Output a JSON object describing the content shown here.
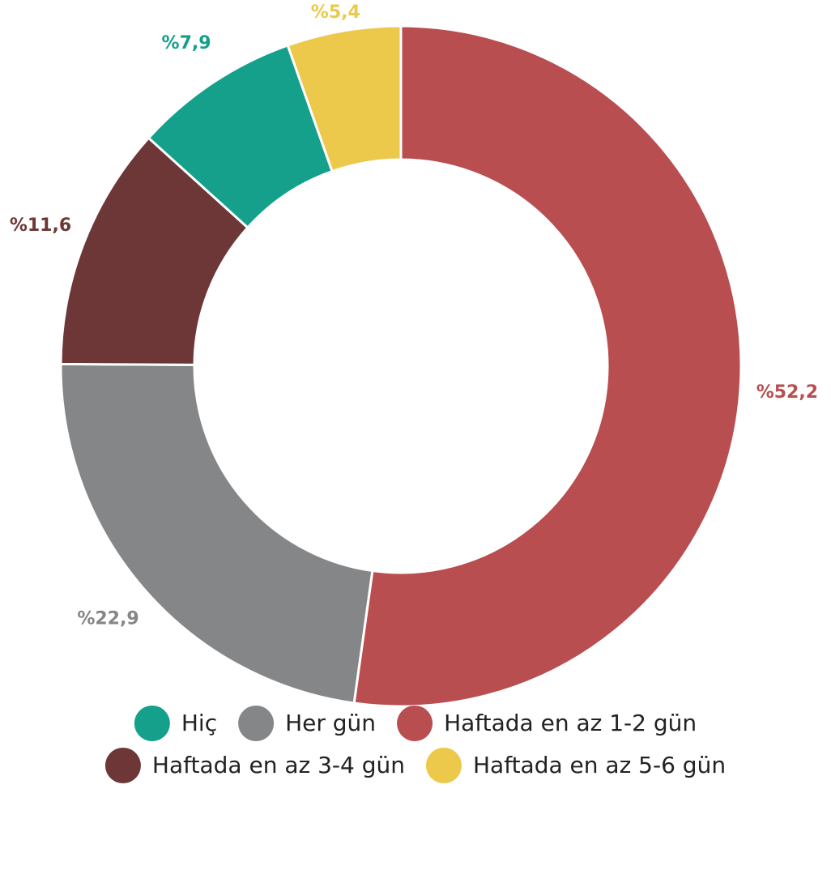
{
  "chart_data": {
    "type": "donut",
    "categories": [
      "Hiç",
      "Her gün",
      "Haftada en az 1-2 gün",
      "Haftada en az 3-4 gün",
      "Haftada en az 5-6 gün"
    ],
    "values": [
      7.9,
      22.9,
      52.2,
      11.6,
      5.4
    ],
    "value_labels": [
      "%7,9",
      "%22,9",
      "%52,2",
      "%11,6",
      "%5,4"
    ],
    "colors": [
      "#14a08b",
      "#858688",
      "#b94e51",
      "#6d3737",
      "#ecc94a"
    ]
  }
}
